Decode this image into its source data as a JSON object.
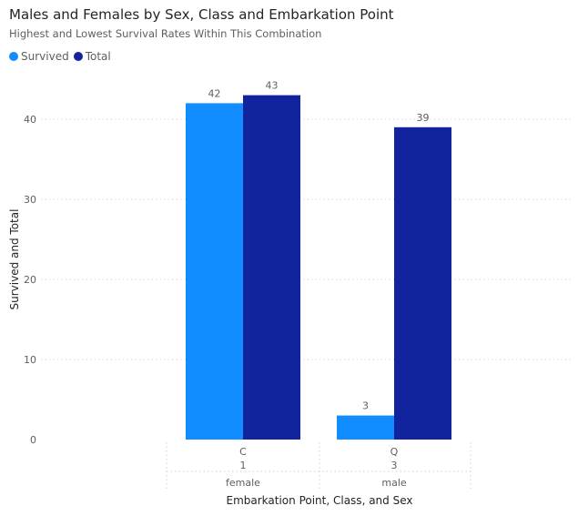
{
  "title": "Males and Females by Sex, Class and Embarkation Point",
  "subtitle": "Highest and Lowest Survival Rates Within This Combination",
  "legend": {
    "items": [
      {
        "label": "Survived",
        "color": "#118DFF"
      },
      {
        "label": "Total",
        "color": "#12239E"
      }
    ]
  },
  "chart_data": {
    "type": "bar",
    "title": "Males and Females by Sex, Class and Embarkation Point",
    "subtitle": "Highest and Lowest Survival Rates Within This Combination",
    "xlabel": "Embarkation Point, Class, and Sex",
    "ylabel": "Survived and Total",
    "ylim": [
      0,
      45
    ],
    "yticks": [
      0,
      10,
      20,
      30,
      40
    ],
    "grid": true,
    "legend_position": "top-left",
    "categories": [
      {
        "levels": [
          "C",
          "1",
          "female"
        ]
      },
      {
        "levels": [
          "Q",
          "3",
          "male"
        ]
      }
    ],
    "series": [
      {
        "name": "Survived",
        "color": "#118DFF",
        "values": [
          42,
          3
        ]
      },
      {
        "name": "Total",
        "color": "#12239E",
        "values": [
          43,
          39
        ]
      }
    ]
  }
}
